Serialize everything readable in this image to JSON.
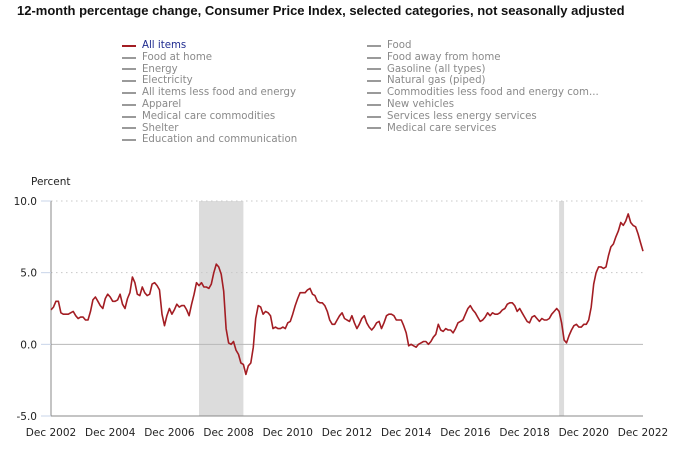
{
  "chart_data": {
    "type": "line",
    "title": "12-month percentage change, Consumer Price Index, selected categories, not seasonally adjusted",
    "ylabel": "Percent",
    "xlabel": "",
    "ylim": [
      -5.0,
      10.0
    ],
    "yticks": [
      "10.0",
      "5.0",
      "0.0",
      "-5.0"
    ],
    "ytick_values": [
      10,
      5,
      0,
      -5
    ],
    "xticks": [
      "Dec 2002",
      "Dec 2004",
      "Dec 2006",
      "Dec 2008",
      "Dec 2010",
      "Dec 2012",
      "Dec 2014",
      "Dec 2016",
      "Dec 2018",
      "Dec 2020",
      "Dec 2022"
    ],
    "x_start": "Dec 2002",
    "x_end": "Dec 2022",
    "frequency": "monthly",
    "grid": "horizontal dotted at 5.0 and 10.0; solid zero line",
    "recessions": [
      {
        "start": "Dec 2007",
        "end": "Jun 2009"
      },
      {
        "start": "Feb 2020",
        "end": "Apr 2020"
      }
    ],
    "legend": {
      "placement": "top",
      "entries": [
        {
          "label": "All items",
          "active": true
        },
        {
          "label": "Food at home",
          "active": false
        },
        {
          "label": "Energy",
          "active": false
        },
        {
          "label": "Electricity",
          "active": false
        },
        {
          "label": "All items less food and energy",
          "active": false
        },
        {
          "label": "Apparel",
          "active": false
        },
        {
          "label": "Medical care commodities",
          "active": false
        },
        {
          "label": "Shelter",
          "active": false
        },
        {
          "label": "Education and communication",
          "active": false
        },
        {
          "label": "Food",
          "active": false
        },
        {
          "label": "Food away from home",
          "active": false
        },
        {
          "label": "Gasoline (all types)",
          "active": false
        },
        {
          "label": "Natural gas (piped)",
          "active": false
        },
        {
          "label": "Commodities less food and energy com...",
          "active": false
        },
        {
          "label": "New vehicles",
          "active": false
        },
        {
          "label": "Services less energy services",
          "active": false
        },
        {
          "label": "Medical care services",
          "active": false
        }
      ]
    },
    "series": [
      {
        "name": "All items",
        "color": "#a31d23",
        "values": [
          2.4,
          2.6,
          3.0,
          3.0,
          2.2,
          2.1,
          2.1,
          2.1,
          2.2,
          2.3,
          2.0,
          1.8,
          1.9,
          1.9,
          1.7,
          1.7,
          2.3,
          3.1,
          3.3,
          3.0,
          2.7,
          2.5,
          3.2,
          3.5,
          3.3,
          3.0,
          3.0,
          3.1,
          3.5,
          2.8,
          2.5,
          3.2,
          3.6,
          4.7,
          4.3,
          3.5,
          3.4,
          4.0,
          3.6,
          3.4,
          3.5,
          4.2,
          4.3,
          4.1,
          3.8,
          2.1,
          1.3,
          2.0,
          2.5,
          2.1,
          2.4,
          2.8,
          2.6,
          2.7,
          2.7,
          2.4,
          2.0,
          2.8,
          3.5,
          4.3,
          4.1,
          4.3,
          4.0,
          4.0,
          3.9,
          4.2,
          5.0,
          5.6,
          5.4,
          4.9,
          3.7,
          1.1,
          0.1,
          0.0,
          0.2,
          -0.4,
          -0.7,
          -1.3,
          -1.4,
          -2.1,
          -1.5,
          -1.3,
          -0.2,
          1.8,
          2.7,
          2.6,
          2.1,
          2.3,
          2.2,
          2.0,
          1.1,
          1.2,
          1.1,
          1.1,
          1.2,
          1.1,
          1.5,
          1.6,
          2.1,
          2.7,
          3.2,
          3.6,
          3.6,
          3.6,
          3.8,
          3.9,
          3.5,
          3.4,
          3.0,
          2.9,
          2.9,
          2.7,
          2.3,
          1.7,
          1.4,
          1.4,
          1.7,
          2.0,
          2.2,
          1.8,
          1.7,
          1.6,
          2.0,
          1.5,
          1.1,
          1.4,
          1.8,
          2.0,
          1.5,
          1.2,
          1.0,
          1.2,
          1.5,
          1.6,
          1.1,
          1.5,
          2.0,
          2.1,
          2.1,
          2.0,
          1.7,
          1.7,
          1.7,
          1.3,
          0.8,
          -0.1,
          0.0,
          -0.1,
          -0.2,
          0.0,
          0.1,
          0.2,
          0.2,
          0.0,
          0.2,
          0.5,
          0.7,
          1.4,
          1.0,
          0.9,
          1.1,
          1.0,
          1.0,
          0.8,
          1.1,
          1.5,
          1.6,
          1.7,
          2.1,
          2.5,
          2.7,
          2.4,
          2.2,
          1.9,
          1.6,
          1.7,
          1.9,
          2.2,
          2.0,
          2.2,
          2.1,
          2.1,
          2.2,
          2.4,
          2.5,
          2.8,
          2.9,
          2.9,
          2.7,
          2.3,
          2.5,
          2.2,
          1.9,
          1.6,
          1.5,
          1.9,
          2.0,
          1.8,
          1.6,
          1.8,
          1.7,
          1.7,
          1.8,
          2.1,
          2.3,
          2.5,
          2.3,
          1.5,
          0.3,
          0.1,
          0.6,
          1.0,
          1.3,
          1.4,
          1.2,
          1.2,
          1.4,
          1.4,
          1.7,
          2.6,
          4.2,
          5.0,
          5.4,
          5.4,
          5.3,
          5.4,
          6.2,
          6.8,
          7.0,
          7.5,
          7.9,
          8.5,
          8.3,
          8.6,
          9.1,
          8.5,
          8.3,
          8.2,
          7.7,
          7.1,
          6.5
        ]
      }
    ]
  }
}
